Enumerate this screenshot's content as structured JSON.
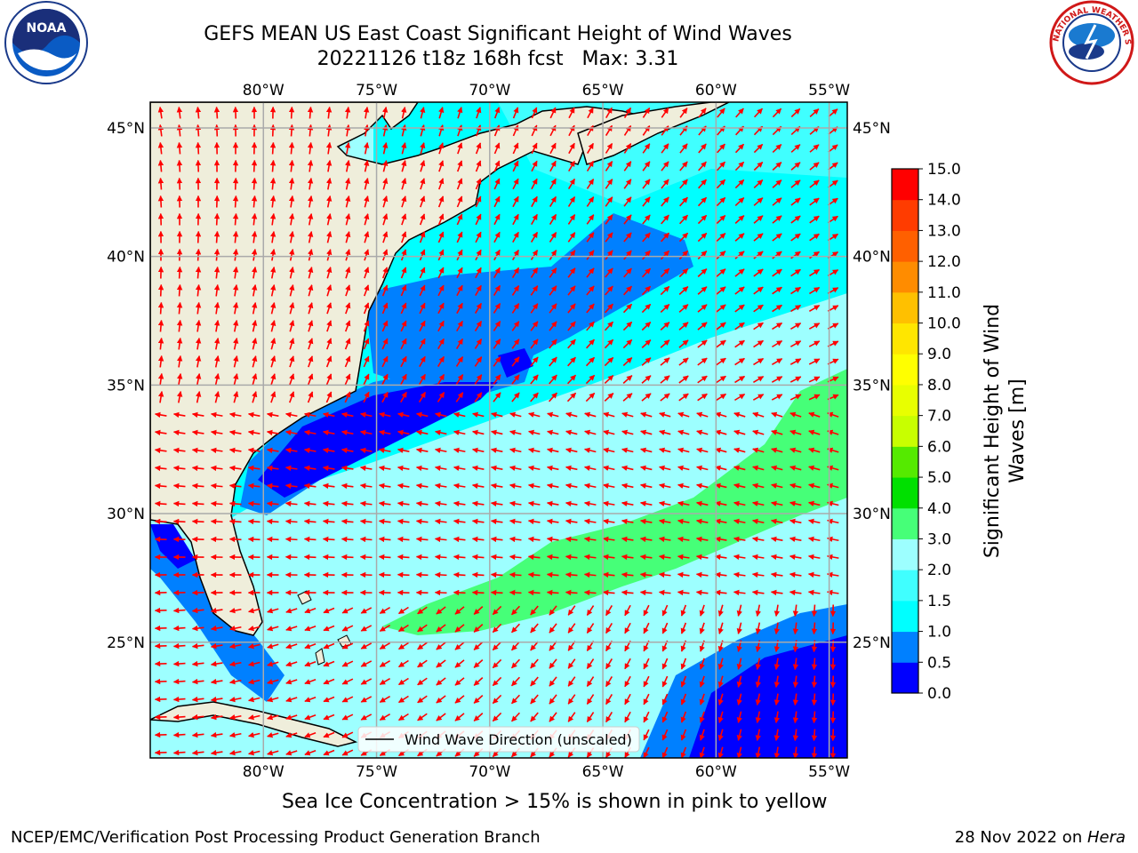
{
  "title": {
    "line1": "GEFS MEAN US East Coast Significant Height of Wind Waves",
    "line2": "20221126 t18z 168h fcst   Max: 3.31"
  },
  "footnote": "Sea Ice Concentration > 15% is shown in pink to yellow",
  "credit": "NCEP/EMC/Verification Post Processing Product Generation Branch",
  "date_text": "28 Nov 2022 on ",
  "date_host": "Hera",
  "legend": {
    "label": "Wind Wave Direction (unscaled)"
  },
  "logos": {
    "noaa": "NOAA",
    "nws": "NATIONAL WEATHER SERVICE"
  },
  "map": {
    "lon_ticks": [
      "80°W",
      "75°W",
      "70°W",
      "65°W",
      "60°W",
      "55°W"
    ],
    "lat_ticks": [
      "45°N",
      "40°N",
      "35°N",
      "30°N",
      "25°N"
    ],
    "lon_values": [
      -80,
      -75,
      -70,
      -65,
      -60,
      -55
    ],
    "lat_values": [
      45,
      40,
      35,
      30,
      25
    ],
    "extent": {
      "lon": [
        -85,
        -54.2
      ],
      "lat": [
        20.5,
        46
      ]
    },
    "grid": true,
    "arrow_color": "#ff0000",
    "land_color": "#efeedb"
  },
  "colorbar": {
    "label_line1": "Significant Height of Wind",
    "label_line2": "Waves [m]",
    "ticks": [
      "0.0",
      "0.5",
      "1.0",
      "1.5",
      "2.0",
      "3.0",
      "4.0",
      "5.0",
      "6.0",
      "7.0",
      "8.0",
      "9.0",
      "10.0",
      "11.0",
      "12.0",
      "13.0",
      "14.0",
      "15.0"
    ],
    "colors": [
      "#0000ff",
      "#0080ff",
      "#00ffff",
      "#40ffff",
      "#9dffff",
      "#46ff78",
      "#00e000",
      "#55ea00",
      "#c8ff00",
      "#e8ff00",
      "#ffff00",
      "#ffe600",
      "#ffc000",
      "#ff8c00",
      "#ff6000",
      "#ff3c00",
      "#ff0000"
    ]
  }
}
